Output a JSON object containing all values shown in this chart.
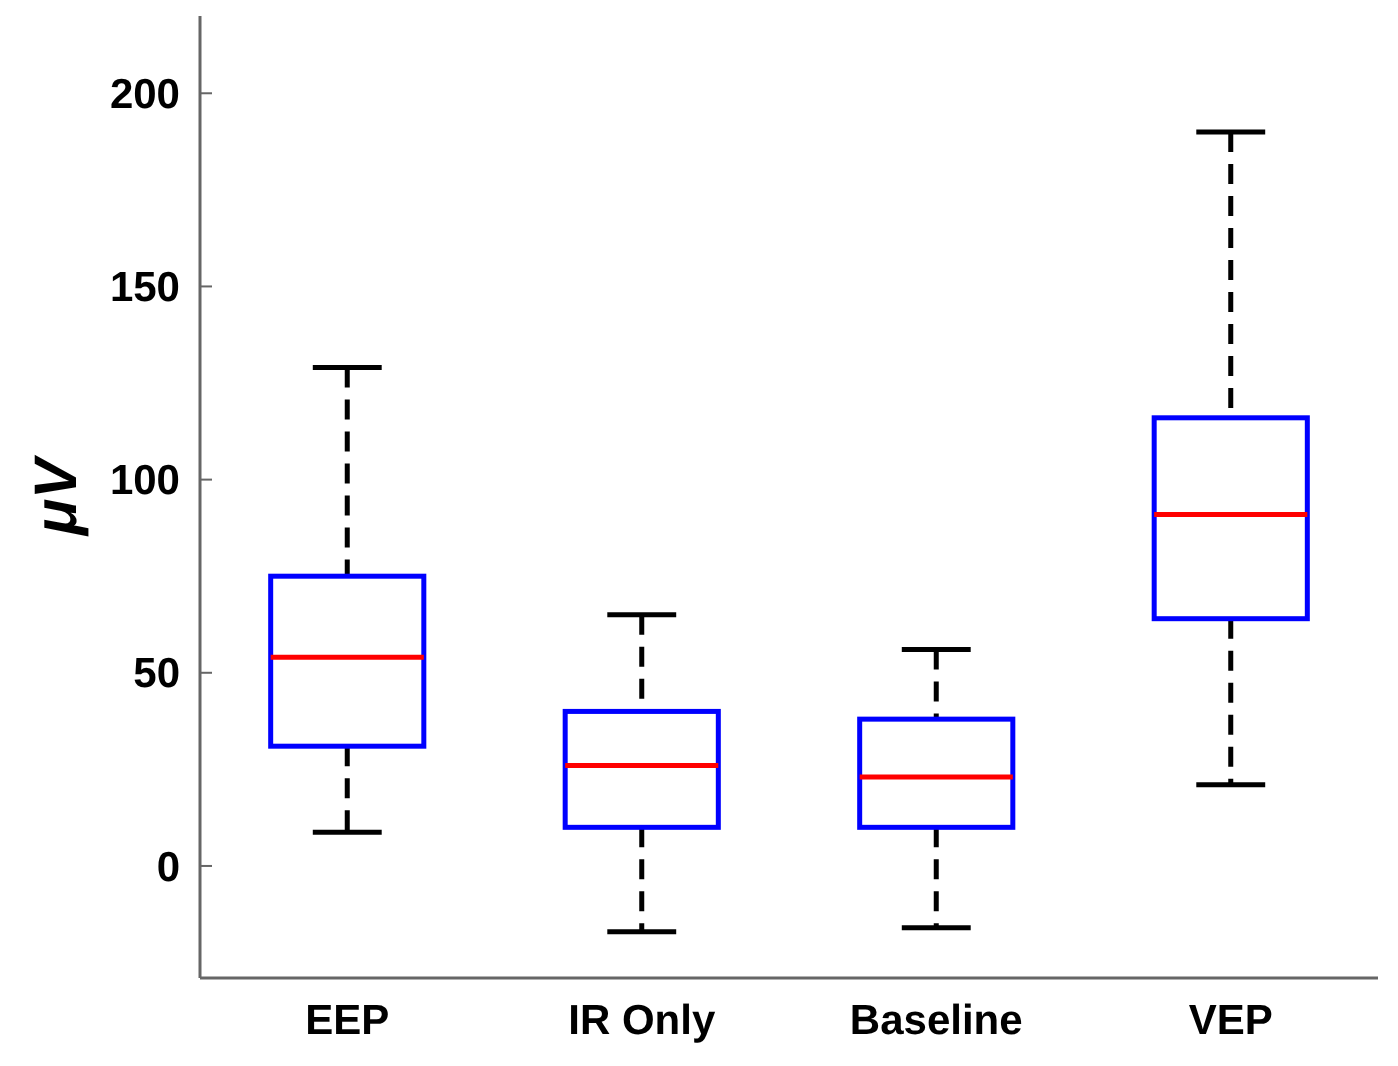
{
  "chart_data": {
    "type": "box",
    "ylabel": "μV",
    "categories": [
      "EEP",
      "IR Only",
      "Baseline",
      "VEP"
    ],
    "color": "#0000ff",
    "boxes": [
      {
        "low": 8.7,
        "q1": 31,
        "median": 54,
        "q3": 75,
        "high": 129
      },
      {
        "low": -17,
        "q1": 10,
        "median": 26,
        "q3": 40,
        "high": 65
      },
      {
        "low": -16,
        "q1": 10,
        "median": 23,
        "q3": 38,
        "high": 56
      },
      {
        "low": 21,
        "q1": 64,
        "median": 91,
        "q3": 116,
        "high": 190
      }
    ],
    "ylim": [
      -29,
      220
    ],
    "yticks": [
      0,
      50,
      100,
      150,
      200
    ],
    "grid": false
  }
}
